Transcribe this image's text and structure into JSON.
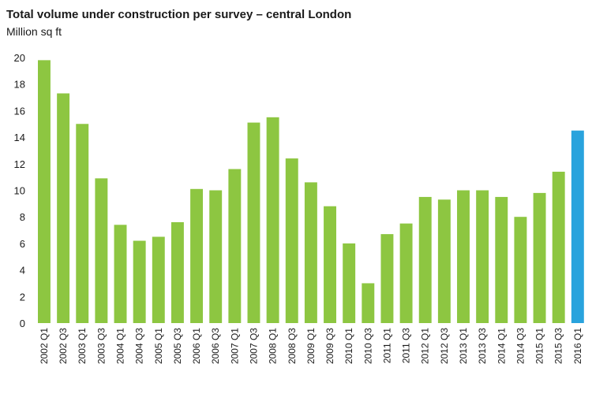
{
  "chart_data": {
    "type": "bar",
    "title": "Total volume under construction per survey – central London",
    "subtitle": "Million sq ft",
    "xlabel": "",
    "ylabel": "",
    "ylim": [
      0,
      20
    ],
    "yticks": [
      0,
      2,
      4,
      6,
      8,
      10,
      12,
      14,
      16,
      18,
      20
    ],
    "grid": false,
    "categories": [
      "2002 Q1",
      "2002 Q3",
      "2003 Q1",
      "2003 Q3",
      "2004 Q1",
      "2004 Q3",
      "2005 Q1",
      "2005 Q3",
      "2006 Q1",
      "2006 Q3",
      "2007 Q1",
      "2007 Q3",
      "2008 Q1",
      "2008 Q3",
      "2009 Q1",
      "2009 Q3",
      "2010 Q1",
      "2010 Q3",
      "2011 Q1",
      "2011 Q3",
      "2012 Q1",
      "2012 Q3",
      "2013 Q1",
      "2013 Q3",
      "2014 Q1",
      "2014 Q3",
      "2015 Q1",
      "2015 Q3",
      "2016 Q1"
    ],
    "values": [
      19.8,
      17.3,
      15.0,
      10.9,
      7.4,
      6.2,
      6.5,
      7.6,
      10.1,
      10.0,
      11.6,
      15.1,
      15.5,
      12.4,
      10.6,
      8.8,
      6.0,
      3.0,
      6.7,
      7.5,
      9.5,
      9.3,
      10.0,
      10.0,
      9.5,
      8.0,
      9.8,
      11.4,
      14.5
    ],
    "colors": {
      "default": "#8dc641",
      "highlight": "#29a3dd"
    },
    "highlight_index": 28
  }
}
